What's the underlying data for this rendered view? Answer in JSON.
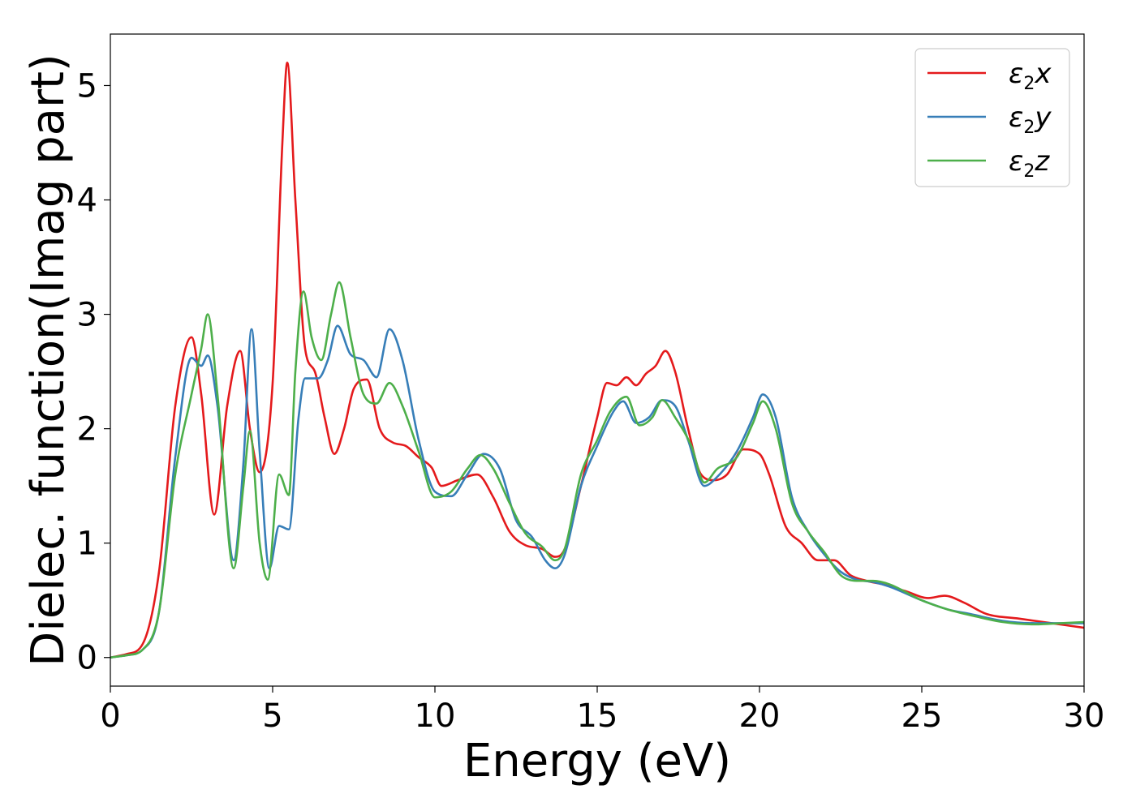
{
  "chart_data": {
    "type": "line",
    "title": "",
    "xlabel": "Energy (eV)",
    "ylabel": "Dielec. function(Imag part)",
    "xlim": [
      0,
      30
    ],
    "ylim": [
      -0.25,
      5.45
    ],
    "xticks": [
      0,
      5,
      10,
      15,
      20,
      25,
      30
    ],
    "yticks": [
      0,
      1,
      2,
      3,
      4,
      5
    ],
    "grid": false,
    "legend_position": "top-right",
    "series": [
      {
        "name": "ε2x",
        "label_base": "ε",
        "label_sub": "2",
        "label_var": "x",
        "color": "#e41a1c",
        "points": [
          [
            0,
            0
          ],
          [
            0.5,
            0.03
          ],
          [
            1,
            0.12
          ],
          [
            1.5,
            0.75
          ],
          [
            2.0,
            2.2
          ],
          [
            2.5,
            2.8
          ],
          [
            2.8,
            2.3
          ],
          [
            3.2,
            1.25
          ],
          [
            3.6,
            2.2
          ],
          [
            4.0,
            2.68
          ],
          [
            4.3,
            2.0
          ],
          [
            4.6,
            1.62
          ],
          [
            5.0,
            2.4
          ],
          [
            5.3,
            4.5
          ],
          [
            5.45,
            5.2
          ],
          [
            5.7,
            4.0
          ],
          [
            6.0,
            2.7
          ],
          [
            6.3,
            2.5
          ],
          [
            6.6,
            2.1
          ],
          [
            6.9,
            1.78
          ],
          [
            7.2,
            2.0
          ],
          [
            7.5,
            2.35
          ],
          [
            7.9,
            2.43
          ],
          [
            8.3,
            2.0
          ],
          [
            8.7,
            1.88
          ],
          [
            9.1,
            1.85
          ],
          [
            9.5,
            1.75
          ],
          [
            9.9,
            1.66
          ],
          [
            10.2,
            1.5
          ],
          [
            10.7,
            1.55
          ],
          [
            11.3,
            1.6
          ],
          [
            11.8,
            1.4
          ],
          [
            12.3,
            1.1
          ],
          [
            12.8,
            0.98
          ],
          [
            13.3,
            0.95
          ],
          [
            13.7,
            0.88
          ],
          [
            14.0,
            0.95
          ],
          [
            14.5,
            1.5
          ],
          [
            15.0,
            2.1
          ],
          [
            15.3,
            2.4
          ],
          [
            15.6,
            2.38
          ],
          [
            15.9,
            2.45
          ],
          [
            16.2,
            2.38
          ],
          [
            16.5,
            2.48
          ],
          [
            16.8,
            2.55
          ],
          [
            17.1,
            2.68
          ],
          [
            17.4,
            2.5
          ],
          [
            17.8,
            2.0
          ],
          [
            18.2,
            1.6
          ],
          [
            18.6,
            1.55
          ],
          [
            19.0,
            1.6
          ],
          [
            19.5,
            1.82
          ],
          [
            20.0,
            1.78
          ],
          [
            20.3,
            1.6
          ],
          [
            20.8,
            1.15
          ],
          [
            21.3,
            1.0
          ],
          [
            21.8,
            0.85
          ],
          [
            22.3,
            0.85
          ],
          [
            22.8,
            0.72
          ],
          [
            23.3,
            0.67
          ],
          [
            23.8,
            0.64
          ],
          [
            24.5,
            0.58
          ],
          [
            25.2,
            0.52
          ],
          [
            25.7,
            0.54
          ],
          [
            26.3,
            0.48
          ],
          [
            27.0,
            0.38
          ],
          [
            28.0,
            0.34
          ],
          [
            29.0,
            0.3
          ],
          [
            30.0,
            0.26
          ]
        ]
      },
      {
        "name": "ε2y",
        "label_base": "ε",
        "label_sub": "2",
        "label_var": "y",
        "color": "#377eb8",
        "points": [
          [
            0,
            0
          ],
          [
            0.5,
            0.02
          ],
          [
            1,
            0.07
          ],
          [
            1.5,
            0.4
          ],
          [
            2.0,
            1.75
          ],
          [
            2.5,
            2.62
          ],
          [
            2.8,
            2.55
          ],
          [
            3.0,
            2.64
          ],
          [
            3.3,
            2.2
          ],
          [
            3.8,
            0.85
          ],
          [
            4.1,
            1.7
          ],
          [
            4.35,
            2.87
          ],
          [
            4.6,
            1.8
          ],
          [
            4.9,
            0.78
          ],
          [
            5.2,
            1.15
          ],
          [
            5.5,
            1.12
          ],
          [
            5.8,
            2.1
          ],
          [
            6.0,
            2.44
          ],
          [
            6.4,
            2.44
          ],
          [
            6.7,
            2.6
          ],
          [
            7.0,
            2.9
          ],
          [
            7.4,
            2.65
          ],
          [
            7.8,
            2.6
          ],
          [
            8.2,
            2.45
          ],
          [
            8.6,
            2.87
          ],
          [
            9.0,
            2.6
          ],
          [
            9.5,
            1.9
          ],
          [
            10.0,
            1.45
          ],
          [
            10.5,
            1.41
          ],
          [
            11.0,
            1.6
          ],
          [
            11.5,
            1.78
          ],
          [
            12.0,
            1.65
          ],
          [
            12.5,
            1.2
          ],
          [
            13.0,
            1.05
          ],
          [
            13.4,
            0.85
          ],
          [
            13.7,
            0.78
          ],
          [
            14.0,
            0.9
          ],
          [
            14.5,
            1.5
          ],
          [
            15.0,
            1.85
          ],
          [
            15.5,
            2.15
          ],
          [
            15.8,
            2.24
          ],
          [
            16.2,
            2.05
          ],
          [
            16.6,
            2.1
          ],
          [
            17.0,
            2.25
          ],
          [
            17.4,
            2.2
          ],
          [
            17.8,
            1.9
          ],
          [
            18.3,
            1.5
          ],
          [
            18.7,
            1.58
          ],
          [
            19.3,
            1.8
          ],
          [
            19.8,
            2.1
          ],
          [
            20.1,
            2.3
          ],
          [
            20.5,
            2.1
          ],
          [
            21.0,
            1.4
          ],
          [
            21.5,
            1.1
          ],
          [
            22.0,
            0.9
          ],
          [
            22.5,
            0.75
          ],
          [
            23.0,
            0.68
          ],
          [
            23.5,
            0.66
          ],
          [
            24.0,
            0.62
          ],
          [
            25.0,
            0.5
          ],
          [
            25.8,
            0.42
          ],
          [
            26.5,
            0.38
          ],
          [
            27.5,
            0.32
          ],
          [
            28.5,
            0.3
          ],
          [
            29.3,
            0.3
          ],
          [
            30.0,
            0.3
          ]
        ]
      },
      {
        "name": "ε2z",
        "label_base": "ε",
        "label_sub": "2",
        "label_var": "z",
        "color": "#4daf4a",
        "points": [
          [
            0,
            0
          ],
          [
            0.5,
            0.02
          ],
          [
            1,
            0.07
          ],
          [
            1.5,
            0.4
          ],
          [
            2.0,
            1.6
          ],
          [
            2.5,
            2.3
          ],
          [
            2.8,
            2.7
          ],
          [
            3.0,
            3.0
          ],
          [
            3.3,
            2.3
          ],
          [
            3.8,
            0.78
          ],
          [
            4.1,
            1.5
          ],
          [
            4.3,
            1.98
          ],
          [
            4.6,
            1.0
          ],
          [
            4.85,
            0.68
          ],
          [
            5.2,
            1.6
          ],
          [
            5.5,
            1.42
          ],
          [
            5.7,
            2.5
          ],
          [
            5.95,
            3.2
          ],
          [
            6.2,
            2.8
          ],
          [
            6.5,
            2.6
          ],
          [
            6.8,
            3.0
          ],
          [
            7.05,
            3.28
          ],
          [
            7.4,
            2.8
          ],
          [
            7.8,
            2.3
          ],
          [
            8.2,
            2.22
          ],
          [
            8.6,
            2.4
          ],
          [
            9.0,
            2.2
          ],
          [
            9.5,
            1.8
          ],
          [
            10.0,
            1.4
          ],
          [
            10.5,
            1.45
          ],
          [
            11.0,
            1.65
          ],
          [
            11.4,
            1.77
          ],
          [
            11.8,
            1.65
          ],
          [
            12.3,
            1.35
          ],
          [
            12.8,
            1.08
          ],
          [
            13.3,
            0.97
          ],
          [
            13.7,
            0.85
          ],
          [
            14.0,
            0.95
          ],
          [
            14.5,
            1.6
          ],
          [
            15.0,
            1.9
          ],
          [
            15.4,
            2.15
          ],
          [
            15.9,
            2.28
          ],
          [
            16.3,
            2.03
          ],
          [
            16.7,
            2.1
          ],
          [
            17.0,
            2.25
          ],
          [
            17.4,
            2.1
          ],
          [
            17.9,
            1.85
          ],
          [
            18.3,
            1.53
          ],
          [
            18.7,
            1.65
          ],
          [
            19.3,
            1.75
          ],
          [
            19.8,
            2.05
          ],
          [
            20.1,
            2.24
          ],
          [
            20.5,
            2.0
          ],
          [
            21.0,
            1.35
          ],
          [
            21.5,
            1.1
          ],
          [
            22.0,
            0.92
          ],
          [
            22.5,
            0.72
          ],
          [
            23.0,
            0.67
          ],
          [
            23.5,
            0.67
          ],
          [
            24.0,
            0.64
          ],
          [
            25.0,
            0.5
          ],
          [
            25.8,
            0.42
          ],
          [
            26.5,
            0.37
          ],
          [
            27.5,
            0.31
          ],
          [
            28.5,
            0.29
          ],
          [
            29.3,
            0.3
          ],
          [
            30.0,
            0.31
          ]
        ]
      }
    ]
  }
}
